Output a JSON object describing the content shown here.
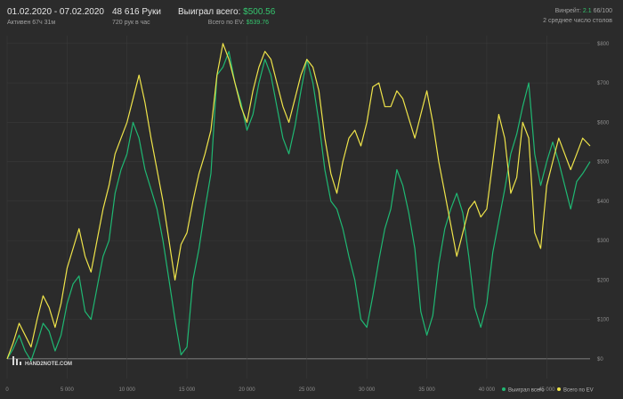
{
  "header": {
    "date_range": "01.02.2020 - 07.02.2020",
    "active_time": "Активен 67ч 31м",
    "hands": "48 616 Руки",
    "hands_per_hour": "720 рук в час",
    "won_label": "Выиграл всего:",
    "won_value": "$500.56",
    "ev_label": "Всего по EV:",
    "ev_value": "$539.76",
    "winrate_label": "Винрейт:",
    "winrate_value": "2.1",
    "winrate_suffix": "66/100",
    "tables_text": "2 среднее число столов"
  },
  "logo": {
    "text": "HAND2NOTE.COM"
  },
  "colors": {
    "won": "#1fb873",
    "ev": "#efe44a",
    "background": "#2b2b2b",
    "grid": "#3a3a3a",
    "zero_line": "#9a9a9a"
  },
  "chart_data": {
    "type": "line",
    "xlim": [
      0,
      48616
    ],
    "ylim": [
      -50,
      820
    ],
    "x_ticks": [
      0,
      5000,
      10000,
      15000,
      20000,
      25000,
      30000,
      35000,
      40000,
      45000
    ],
    "x_tick_labels": [
      "0",
      "5 000",
      "10 000",
      "15 000",
      "20 000",
      "25 000",
      "30 000",
      "35 000",
      "40 000",
      "45 000"
    ],
    "y_ticks": [
      0,
      100,
      200,
      300,
      400,
      500,
      600,
      700,
      800
    ],
    "y_tick_labels": [
      "$0",
      "$100",
      "$200",
      "$300",
      "$400",
      "$500",
      "$600",
      "$700",
      "$800"
    ],
    "grid": true,
    "legend_position": "bottom-right",
    "series": [
      {
        "name": "Выиграл всего",
        "color": "#1fb873",
        "x": [
          0,
          500,
          1000,
          1500,
          2000,
          2500,
          3000,
          3500,
          4000,
          4500,
          5000,
          5500,
          6000,
          6500,
          7000,
          7500,
          8000,
          8500,
          9000,
          9500,
          10000,
          10500,
          11000,
          11500,
          12000,
          12500,
          13000,
          13500,
          14000,
          14500,
          15000,
          15500,
          16000,
          16500,
          17000,
          17500,
          18000,
          18500,
          19000,
          19500,
          20000,
          20500,
          21000,
          21500,
          22000,
          22500,
          23000,
          23500,
          24000,
          24500,
          25000,
          25500,
          26000,
          26500,
          27000,
          27500,
          28000,
          28500,
          29000,
          29500,
          30000,
          30500,
          31000,
          31500,
          32000,
          32500,
          33000,
          33500,
          34000,
          34500,
          35000,
          35500,
          36000,
          36500,
          37000,
          37500,
          38000,
          38500,
          39000,
          39500,
          40000,
          40500,
          41000,
          41500,
          42000,
          42500,
          43000,
          43500,
          44000,
          44500,
          45000,
          45500,
          46000,
          46500,
          47000,
          47500,
          48000,
          48616
        ],
        "values": [
          0,
          25,
          60,
          20,
          -5,
          40,
          90,
          70,
          20,
          60,
          140,
          190,
          210,
          120,
          100,
          180,
          260,
          300,
          420,
          480,
          520,
          600,
          560,
          480,
          430,
          380,
          300,
          200,
          100,
          10,
          30,
          200,
          280,
          380,
          470,
          720,
          740,
          780,
          700,
          650,
          580,
          620,
          700,
          760,
          720,
          640,
          560,
          520,
          590,
          680,
          760,
          700,
          600,
          480,
          400,
          380,
          330,
          260,
          200,
          100,
          80,
          160,
          250,
          330,
          380,
          480,
          440,
          370,
          280,
          120,
          60,
          110,
          240,
          330,
          380,
          420,
          370,
          260,
          130,
          80,
          140,
          270,
          350,
          430,
          520,
          570,
          640,
          700,
          520,
          440,
          500,
          550,
          500,
          440,
          380,
          450,
          470,
          500
        ]
      },
      {
        "name": "Всего по EV",
        "color": "#efe44a",
        "x": [
          0,
          500,
          1000,
          1500,
          2000,
          2500,
          3000,
          3500,
          4000,
          4500,
          5000,
          5500,
          6000,
          6500,
          7000,
          7500,
          8000,
          8500,
          9000,
          9500,
          10000,
          10500,
          11000,
          11500,
          12000,
          12500,
          13000,
          13500,
          14000,
          14500,
          15000,
          15500,
          16000,
          16500,
          17000,
          17500,
          18000,
          18500,
          19000,
          19500,
          20000,
          20500,
          21000,
          21500,
          22000,
          22500,
          23000,
          23500,
          24000,
          24500,
          25000,
          25500,
          26000,
          26500,
          27000,
          27500,
          28000,
          28500,
          29000,
          29500,
          30000,
          30500,
          31000,
          31500,
          32000,
          32500,
          33000,
          33500,
          34000,
          34500,
          35000,
          35500,
          36000,
          36500,
          37000,
          37500,
          38000,
          38500,
          39000,
          39500,
          40000,
          40500,
          41000,
          41500,
          42000,
          42500,
          43000,
          43500,
          44000,
          44500,
          45000,
          45500,
          46000,
          46500,
          47000,
          47500,
          48000,
          48616
        ],
        "values": [
          0,
          40,
          90,
          60,
          30,
          100,
          160,
          130,
          80,
          140,
          230,
          280,
          330,
          260,
          220,
          300,
          380,
          440,
          520,
          560,
          600,
          660,
          720,
          650,
          560,
          480,
          400,
          300,
          200,
          290,
          320,
          400,
          470,
          520,
          580,
          720,
          800,
          760,
          700,
          640,
          600,
          680,
          740,
          780,
          760,
          700,
          640,
          600,
          660,
          720,
          760,
          740,
          680,
          560,
          470,
          420,
          500,
          560,
          580,
          540,
          600,
          690,
          700,
          640,
          640,
          680,
          660,
          610,
          560,
          620,
          680,
          600,
          500,
          420,
          340,
          260,
          320,
          380,
          400,
          360,
          380,
          500,
          620,
          560,
          420,
          460,
          600,
          560,
          320,
          280,
          440,
          500,
          560,
          520,
          480,
          520,
          560,
          540
        ]
      }
    ]
  }
}
